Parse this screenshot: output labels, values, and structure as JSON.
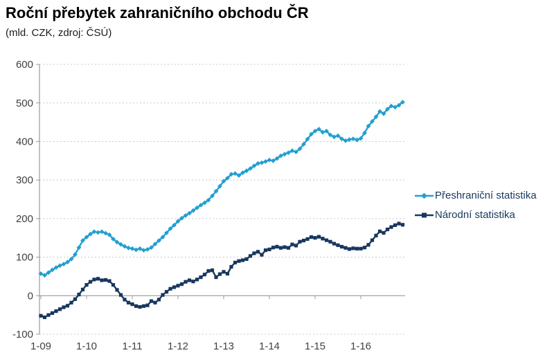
{
  "header": {
    "title": "Roční přebytek zahraničního obchodu ČR",
    "subtitle": "(mld. CZK, zdroj: ČSÚ)"
  },
  "colors": {
    "cross_border_series": "#239FD0",
    "national_series": "#17375E",
    "axis_line": "#9a9a9a",
    "gridline": "#c8c8c8",
    "axis_text": "#404040",
    "legend_text": "#17375E"
  },
  "chart_data": {
    "type": "line",
    "title": "Roční přebytek zahraničního obchodu ČR",
    "subtitle": "(mld. CZK, zdroj: ČSÚ)",
    "xlabel": "",
    "ylabel": "mld. CZK",
    "ylim": [
      -100,
      600
    ],
    "y_ticks": [
      600,
      500,
      400,
      300,
      200,
      100,
      0,
      -100
    ],
    "x_tick_labels": [
      "1-09",
      "1-10",
      "1-11",
      "1-12",
      "1-13",
      "1-14",
      "1-15",
      "1-16"
    ],
    "x_unit": "month",
    "x_start": "2009-01",
    "grid": "horizontal-dashed",
    "legend_position": "right",
    "series": [
      {
        "name": "Přeshraniční statistika",
        "color": "#239FD0",
        "marker": "diamond",
        "values": [
          57,
          53,
          60,
          67,
          73,
          78,
          82,
          87,
          95,
          107,
          125,
          143,
          152,
          160,
          166,
          164,
          166,
          162,
          158,
          147,
          139,
          133,
          128,
          124,
          122,
          119,
          122,
          118,
          120,
          125,
          134,
          143,
          152,
          163,
          174,
          183,
          193,
          201,
          208,
          214,
          221,
          228,
          235,
          241,
          248,
          259,
          271,
          284,
          297,
          305,
          315,
          317,
          312,
          319,
          324,
          330,
          337,
          343,
          345,
          348,
          352,
          350,
          356,
          363,
          367,
          371,
          376,
          373,
          381,
          393,
          406,
          419,
          427,
          432,
          424,
          427,
          417,
          412,
          415,
          407,
          402,
          405,
          407,
          404,
          408,
          422,
          440,
          452,
          464,
          478,
          472,
          484,
          492,
          489,
          494,
          502
        ]
      },
      {
        "name": "Národní statistika",
        "color": "#17375E",
        "marker": "square",
        "values": [
          -52,
          -56,
          -50,
          -45,
          -40,
          -35,
          -30,
          -26,
          -18,
          -9,
          3,
          16,
          28,
          36,
          42,
          44,
          40,
          41,
          38,
          28,
          15,
          2,
          -10,
          -18,
          -22,
          -27,
          -29,
          -27,
          -25,
          -14,
          -18,
          -10,
          2,
          10,
          18,
          22,
          26,
          30,
          36,
          40,
          37,
          42,
          48,
          55,
          64,
          66,
          48,
          56,
          62,
          57,
          75,
          86,
          90,
          92,
          95,
          103,
          110,
          114,
          106,
          118,
          120,
          125,
          127,
          124,
          126,
          124,
          133,
          130,
          140,
          143,
          147,
          152,
          150,
          153,
          148,
          144,
          140,
          135,
          131,
          127,
          124,
          121,
          123,
          122,
          122,
          125,
          132,
          144,
          156,
          167,
          163,
          172,
          178,
          183,
          187,
          184
        ]
      }
    ]
  }
}
